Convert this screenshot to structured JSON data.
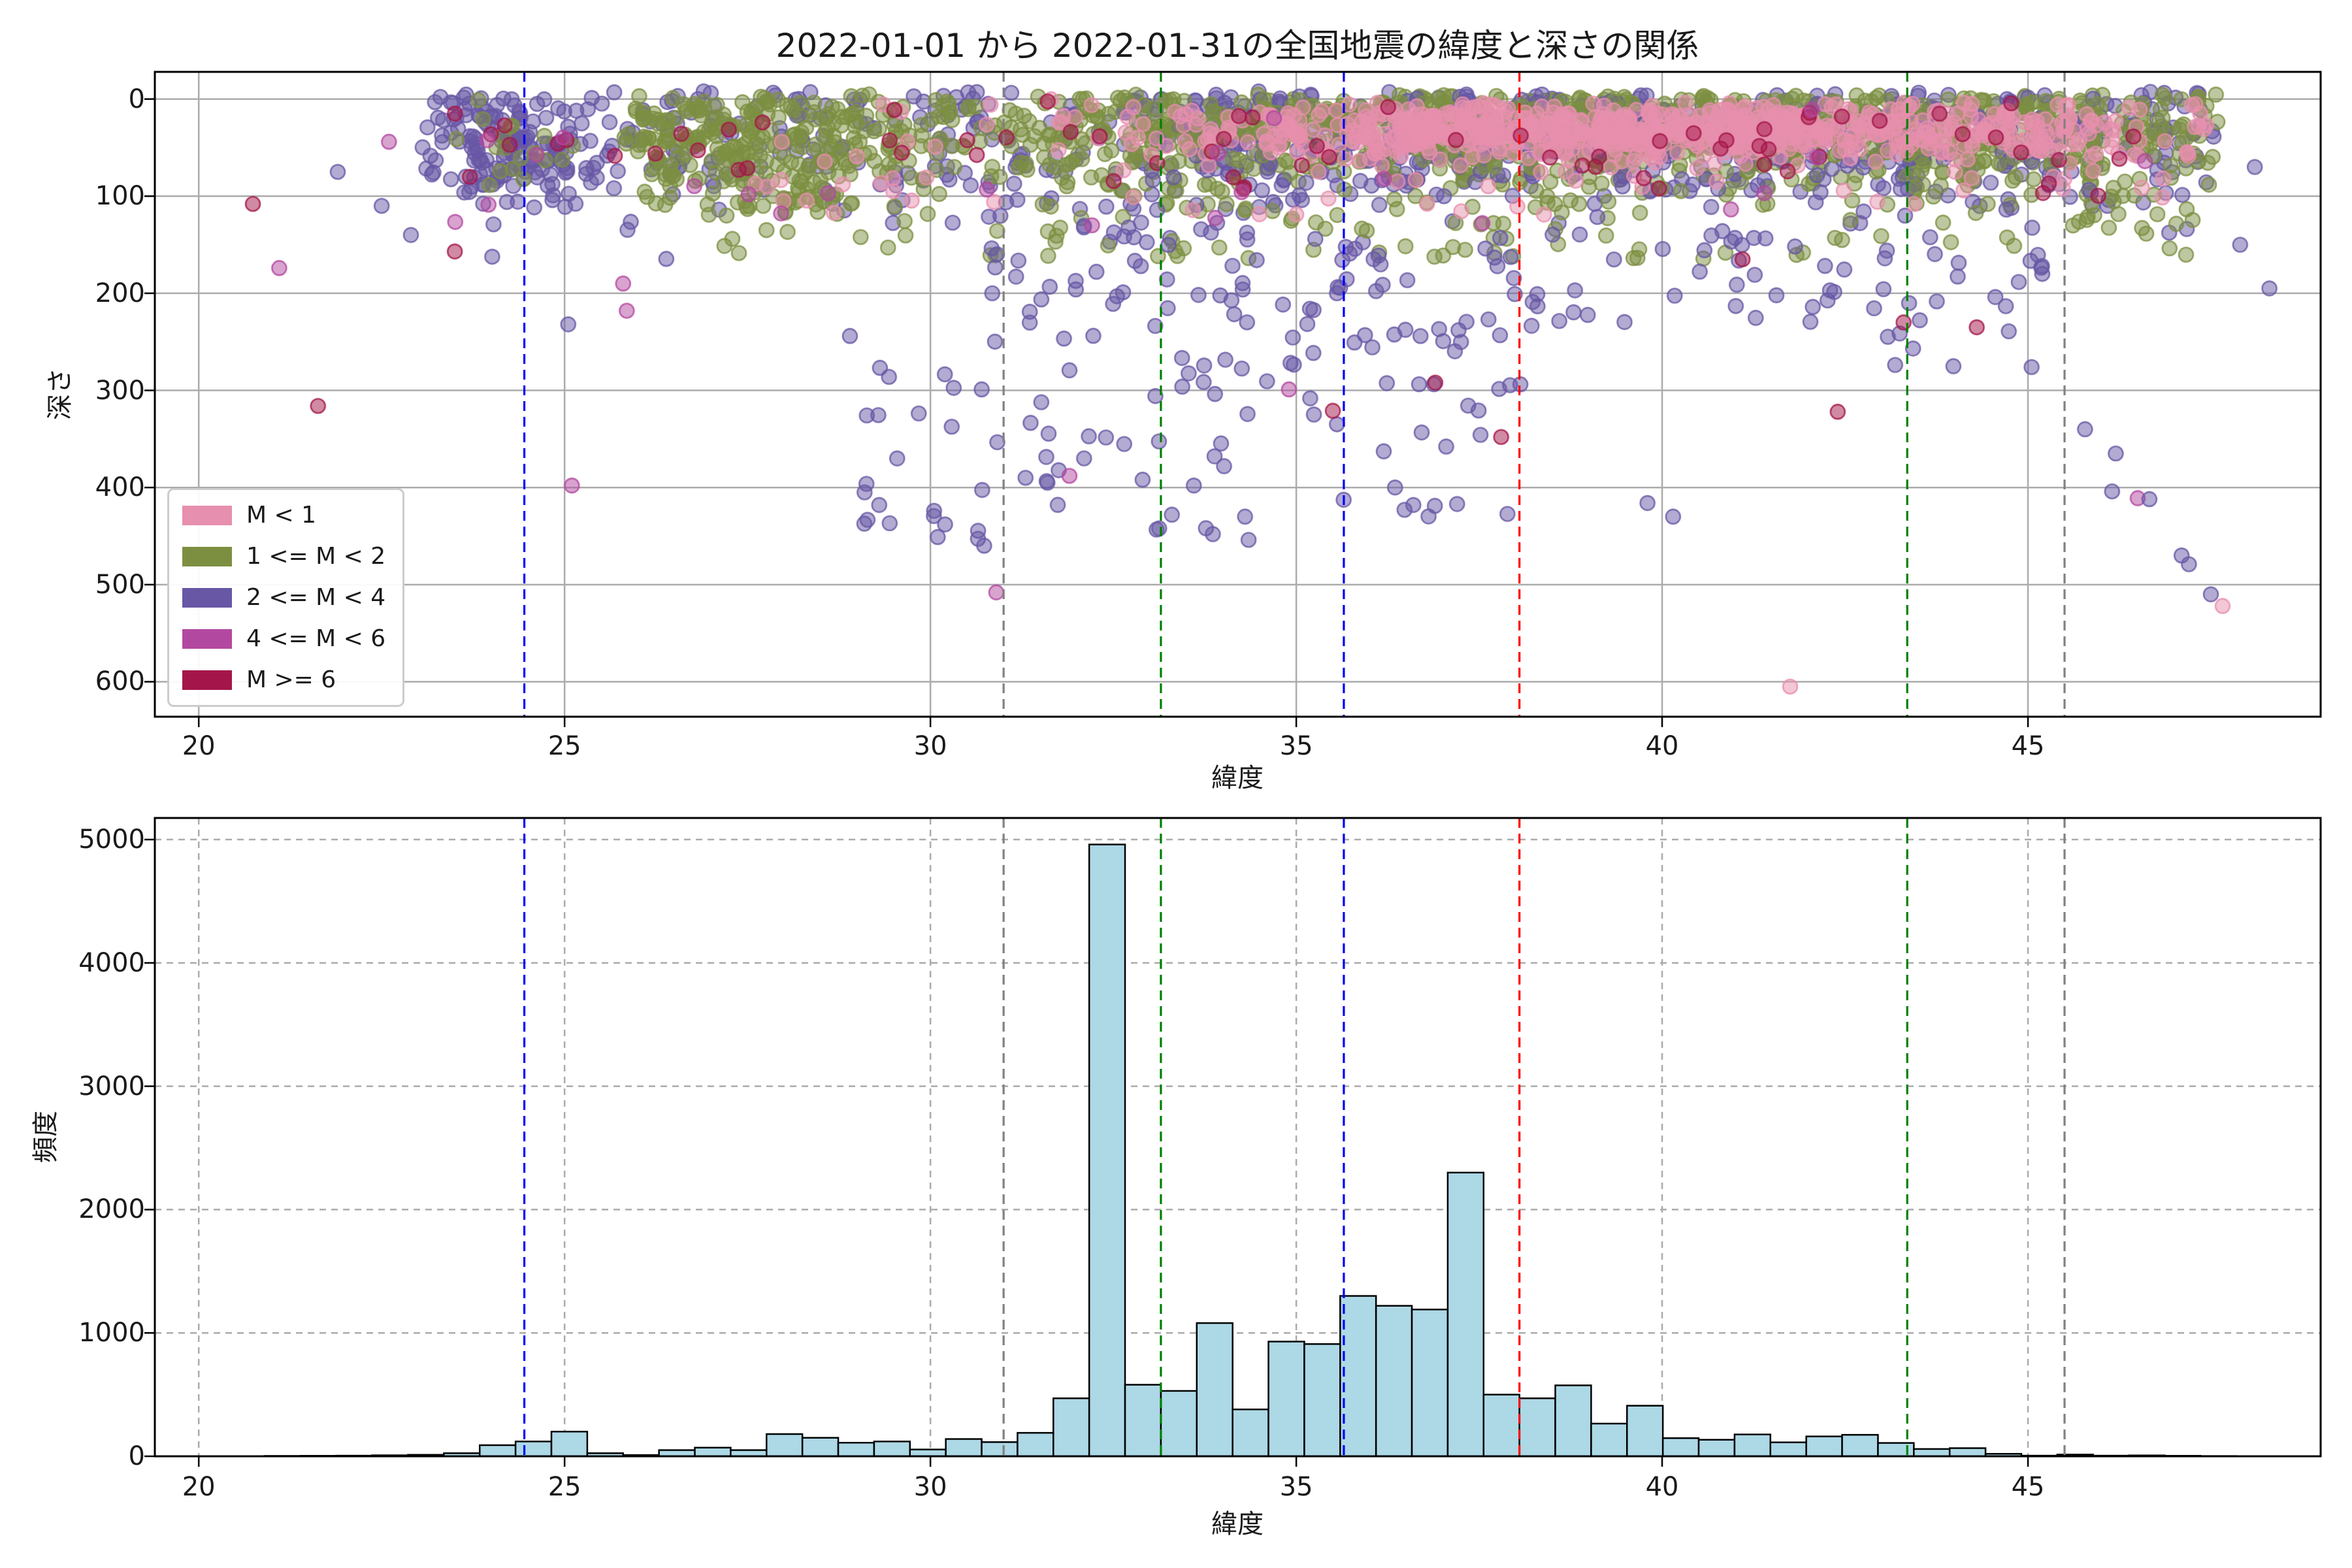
{
  "title": "2022-01-01 から 2022-01-31の全国地震の緯度と深さの関係",
  "vlines": [
    {
      "x": 24.45,
      "color": "#0000ff",
      "style": "dashed"
    },
    {
      "x": 31.0,
      "color": "#808080",
      "style": "dashed"
    },
    {
      "x": 33.15,
      "color": "#008000",
      "style": "dashed"
    },
    {
      "x": 35.65,
      "color": "#0000ff",
      "style": "dashed"
    },
    {
      "x": 38.05,
      "color": "#ff0000",
      "style": "dashed"
    },
    {
      "x": 43.35,
      "color": "#008000",
      "style": "dashed"
    },
    {
      "x": 45.5,
      "color": "#808080",
      "style": "dashed"
    }
  ],
  "chart_data": [
    {
      "type": "scatter",
      "title": "2022-01-01 から 2022-01-31の全国地震の緯度と深さの関係",
      "xlabel": "緯度",
      "ylabel": "深さ",
      "xlim": [
        19.4,
        49.0
      ],
      "ylim": [
        -28,
        636
      ],
      "y_axis_inverted": true,
      "xticks": [
        20,
        25,
        30,
        35,
        40,
        45
      ],
      "yticks": [
        0,
        100,
        200,
        300,
        400,
        500,
        600
      ],
      "grid": "solid",
      "legend_position": "lower left",
      "series": [
        {
          "name": "M < 1",
          "color": "#e78fae"
        },
        {
          "name": "1 <= M < 2",
          "color": "#7c8f41"
        },
        {
          "name": "2 <= M < 4",
          "color": "#6757a5"
        },
        {
          "name": "4 <= M < 6",
          "color": "#b348a0"
        },
        {
          "name": "M >= 6",
          "color": "#a4164a"
        }
      ],
      "seed": 20220101,
      "clusters": [
        {
          "s": 2,
          "n": 650,
          "lat": [
            "u",
            23.0,
            47.6
          ],
          "depth": [
            "an",
            45,
            40,
            -8,
            240
          ]
        },
        {
          "s": 1,
          "n": 900,
          "lat": [
            "u",
            25.8,
            47.6
          ],
          "depth": [
            "an",
            35,
            30,
            -5,
            150
          ]
        },
        {
          "s": 1,
          "n": 120,
          "lat": [
            "u",
            26.0,
            29.0
          ],
          "depth": [
            "u",
            10,
            120
          ]
        },
        {
          "s": 1,
          "n": 150,
          "lat": [
            "u",
            27.0,
            47.3
          ],
          "depth": [
            "u",
            80,
            165
          ]
        },
        {
          "s": 2,
          "n": 250,
          "lat": [
            "u",
            33.0,
            46.0
          ],
          "depth": [
            "an",
            40,
            35,
            -5,
            200
          ]
        },
        {
          "s": 1,
          "n": 350,
          "lat": [
            "u",
            33.0,
            46.0
          ],
          "depth": [
            "an",
            30,
            25,
            0,
            130
          ]
        },
        {
          "s": 0,
          "n": 800,
          "lat": [
            "n",
            39.5,
            3.2,
            31.5,
            46.2
          ],
          "depth": [
            "n",
            32,
            14,
            3,
            70
          ]
        },
        {
          "s": 0,
          "n": 120,
          "lat": [
            "u",
            27.0,
            47.5
          ],
          "depth": [
            "u",
            0,
            120
          ]
        },
        {
          "s": 0,
          "n": 40,
          "lat": [
            "u",
            44.5,
            47.6
          ],
          "depth": [
            "u",
            5,
            60
          ]
        },
        {
          "s": 2,
          "n": 110,
          "lat": [
            "n",
            24.25,
            0.45,
            23.1,
            25.4
          ],
          "depth": [
            "n",
            45,
            35,
            -10,
            145
          ]
        },
        {
          "s": 1,
          "n": 18,
          "lat": [
            "n",
            24.3,
            0.4,
            23.2,
            25.2
          ],
          "depth": [
            "u",
            0,
            90
          ]
        },
        {
          "s": 2,
          "n": 50,
          "lat": [
            "u",
            29.0,
            34.4
          ],
          "depth": [
            "u",
            250,
            465
          ]
        },
        {
          "s": 2,
          "n": 45,
          "lat": [
            "u",
            30.8,
            34.6
          ],
          "depth": [
            "u",
            130,
            260
          ]
        },
        {
          "s": 2,
          "n": 55,
          "lat": [
            "u",
            34.6,
            38.3
          ],
          "depth": [
            "u",
            140,
            310
          ]
        },
        {
          "s": 2,
          "n": 14,
          "lat": [
            "u",
            35.2,
            38.1
          ],
          "depth": [
            "u",
            310,
            430
          ]
        },
        {
          "s": 2,
          "n": 26,
          "lat": [
            "u",
            42.8,
            45.2
          ],
          "depth": [
            "u",
            140,
            280
          ]
        },
        {
          "s": 2,
          "n": 30,
          "lat": [
            "u",
            38.5,
            42.5
          ],
          "depth": [
            "u",
            130,
            230
          ]
        },
        {
          "s": 4,
          "n": 70,
          "lat": [
            "u",
            23.4,
            47.3
          ],
          "depth": [
            "an",
            40,
            35,
            0,
            165
          ]
        },
        {
          "s": 3,
          "n": 22,
          "lat": [
            "u",
            23.0,
            47.0
          ],
          "depth": [
            "u",
            0,
            130
          ]
        }
      ],
      "outlier_points": [
        [
          4,
          20.74,
          108
        ],
        [
          4,
          21.63,
          316
        ],
        [
          4,
          23.5,
          157
        ],
        [
          4,
          35.5,
          321
        ],
        [
          4,
          37.8,
          348
        ],
        [
          4,
          42.4,
          322
        ],
        [
          4,
          44.3,
          235
        ],
        [
          4,
          43.3,
          230
        ],
        [
          4,
          36.9,
          292
        ],
        [
          4,
          41.1,
          165
        ],
        [
          3,
          21.1,
          174
        ],
        [
          3,
          22.6,
          44
        ],
        [
          3,
          30.9,
          508
        ],
        [
          3,
          31.9,
          388
        ],
        [
          3,
          34.9,
          299
        ],
        [
          3,
          25.1,
          398
        ],
        [
          3,
          46.5,
          411
        ],
        [
          3,
          25.8,
          190
        ],
        [
          3,
          25.85,
          218
        ],
        [
          0,
          41.75,
          605
        ],
        [
          0,
          47.66,
          522
        ],
        [
          2,
          29.1,
          405
        ],
        [
          2,
          29.3,
          418
        ],
        [
          2,
          30.05,
          424
        ],
        [
          2,
          30.2,
          438
        ],
        [
          2,
          30.1,
          451
        ],
        [
          2,
          28.9,
          244
        ],
        [
          2,
          34.3,
          430
        ],
        [
          2,
          33.3,
          428
        ],
        [
          2,
          32.9,
          392
        ],
        [
          2,
          33.6,
          398
        ],
        [
          2,
          36.35,
          400
        ],
        [
          2,
          36.6,
          418
        ],
        [
          2,
          39.8,
          416
        ],
        [
          2,
          40.15,
          430
        ],
        [
          2,
          45.78,
          340
        ],
        [
          2,
          46.2,
          365
        ],
        [
          2,
          46.15,
          404
        ],
        [
          2,
          46.66,
          412
        ],
        [
          2,
          47.1,
          470
        ],
        [
          2,
          47.2,
          479
        ],
        [
          2,
          47.5,
          510
        ],
        [
          2,
          21.9,
          75
        ],
        [
          2,
          22.5,
          110
        ],
        [
          2,
          22.9,
          140
        ],
        [
          2,
          31.3,
          390
        ],
        [
          2,
          31.6,
          395
        ],
        [
          2,
          32.1,
          370
        ],
        [
          2,
          25.05,
          232
        ],
        [
          2,
          48.1,
          70
        ],
        [
          2,
          48.3,
          195
        ],
        [
          2,
          47.9,
          150
        ]
      ]
    },
    {
      "type": "bar",
      "xlabel": "緯度",
      "ylabel": "頻度",
      "xlim": [
        19.4,
        49.0
      ],
      "ylim": [
        0,
        5175
      ],
      "xticks": [
        20,
        25,
        30,
        35,
        40,
        45
      ],
      "yticks": [
        0,
        1000,
        2000,
        3000,
        4000,
        5000
      ],
      "grid": "dashed",
      "bar_color": "#add8e6",
      "bar_edge_color": "#000000",
      "bin_start": 20.9,
      "bin_width": 0.49,
      "values": [
        3,
        4,
        5,
        8,
        12,
        25,
        90,
        120,
        200,
        25,
        10,
        50,
        70,
        50,
        180,
        150,
        110,
        120,
        55,
        140,
        115,
        190,
        470,
        4960,
        580,
        530,
        1080,
        380,
        930,
        910,
        1300,
        1220,
        1190,
        2300,
        500,
        470,
        575,
        265,
        410,
        147,
        134,
        177,
        113,
        161,
        174,
        108,
        59,
        66,
        20,
        5,
        14,
        5,
        7,
        4,
        2
      ]
    }
  ]
}
